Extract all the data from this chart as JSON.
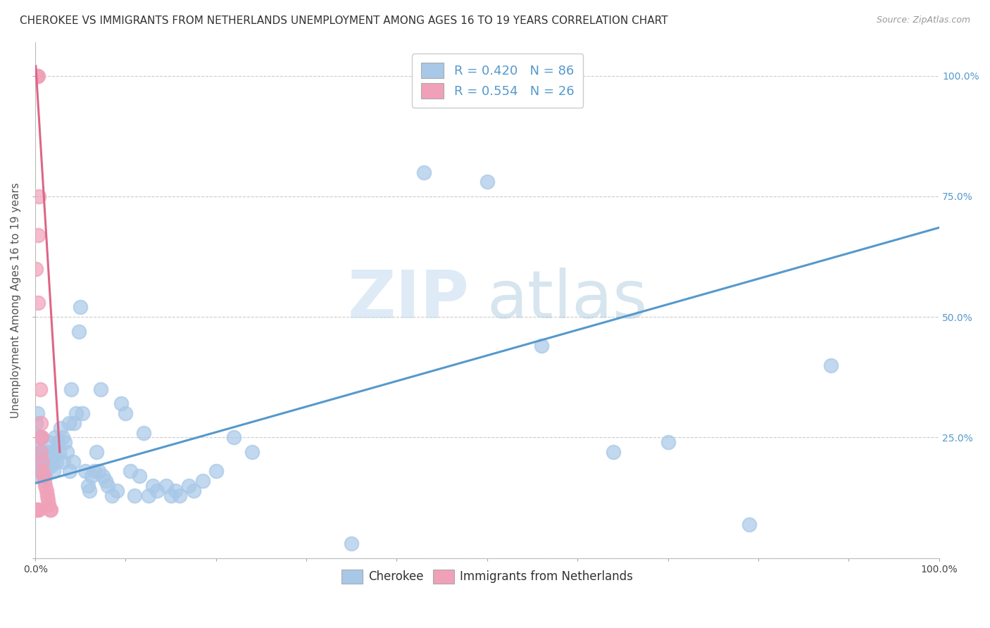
{
  "title": "CHEROKEE VS IMMIGRANTS FROM NETHERLANDS UNEMPLOYMENT AMONG AGES 16 TO 19 YEARS CORRELATION CHART",
  "source": "Source: ZipAtlas.com",
  "ylabel": "Unemployment Among Ages 16 to 19 years",
  "legend_bottom": [
    "Cherokee",
    "Immigrants from Netherlands"
  ],
  "R_blue": 0.42,
  "N_blue": 86,
  "R_pink": 0.554,
  "N_pink": 26,
  "blue_color": "#a8c8e8",
  "pink_color": "#f0a0b8",
  "blue_line_color": "#5599cc",
  "pink_line_color": "#dd6688",
  "watermark_zip": "ZIP",
  "watermark_atlas": "atlas",
  "background_color": "#ffffff",
  "blue_scatter": [
    [
      0.001,
      0.28
    ],
    [
      0.002,
      0.3
    ],
    [
      0.002,
      0.22
    ],
    [
      0.003,
      0.25
    ],
    [
      0.003,
      0.2
    ],
    [
      0.003,
      0.18
    ],
    [
      0.004,
      0.22
    ],
    [
      0.004,
      0.19
    ],
    [
      0.005,
      0.2
    ],
    [
      0.005,
      0.17
    ],
    [
      0.006,
      0.18
    ],
    [
      0.006,
      0.21
    ],
    [
      0.007,
      0.25
    ],
    [
      0.007,
      0.18
    ],
    [
      0.008,
      0.22
    ],
    [
      0.008,
      0.19
    ],
    [
      0.009,
      0.2
    ],
    [
      0.01,
      0.22
    ],
    [
      0.01,
      0.18
    ],
    [
      0.011,
      0.17
    ],
    [
      0.012,
      0.2
    ],
    [
      0.013,
      0.22
    ],
    [
      0.014,
      0.19
    ],
    [
      0.015,
      0.24
    ],
    [
      0.016,
      0.21
    ],
    [
      0.017,
      0.19
    ],
    [
      0.018,
      0.22
    ],
    [
      0.019,
      0.2
    ],
    [
      0.02,
      0.18
    ],
    [
      0.021,
      0.22
    ],
    [
      0.022,
      0.25
    ],
    [
      0.023,
      0.2
    ],
    [
      0.025,
      0.24
    ],
    [
      0.026,
      0.22
    ],
    [
      0.028,
      0.27
    ],
    [
      0.03,
      0.25
    ],
    [
      0.031,
      0.2
    ],
    [
      0.033,
      0.24
    ],
    [
      0.035,
      0.22
    ],
    [
      0.037,
      0.28
    ],
    [
      0.038,
      0.18
    ],
    [
      0.04,
      0.35
    ],
    [
      0.042,
      0.2
    ],
    [
      0.043,
      0.28
    ],
    [
      0.045,
      0.3
    ],
    [
      0.048,
      0.47
    ],
    [
      0.05,
      0.52
    ],
    [
      0.052,
      0.3
    ],
    [
      0.055,
      0.18
    ],
    [
      0.058,
      0.15
    ],
    [
      0.06,
      0.14
    ],
    [
      0.062,
      0.17
    ],
    [
      0.065,
      0.18
    ],
    [
      0.068,
      0.22
    ],
    [
      0.07,
      0.18
    ],
    [
      0.072,
      0.35
    ],
    [
      0.075,
      0.17
    ],
    [
      0.078,
      0.16
    ],
    [
      0.08,
      0.15
    ],
    [
      0.085,
      0.13
    ],
    [
      0.09,
      0.14
    ],
    [
      0.095,
      0.32
    ],
    [
      0.1,
      0.3
    ],
    [
      0.105,
      0.18
    ],
    [
      0.11,
      0.13
    ],
    [
      0.115,
      0.17
    ],
    [
      0.12,
      0.26
    ],
    [
      0.125,
      0.13
    ],
    [
      0.13,
      0.15
    ],
    [
      0.135,
      0.14
    ],
    [
      0.145,
      0.15
    ],
    [
      0.15,
      0.13
    ],
    [
      0.155,
      0.14
    ],
    [
      0.16,
      0.13
    ],
    [
      0.17,
      0.15
    ],
    [
      0.175,
      0.14
    ],
    [
      0.185,
      0.16
    ],
    [
      0.2,
      0.18
    ],
    [
      0.22,
      0.25
    ],
    [
      0.24,
      0.22
    ],
    [
      0.35,
      0.03
    ],
    [
      0.43,
      0.8
    ],
    [
      0.5,
      0.78
    ],
    [
      0.56,
      0.44
    ],
    [
      0.64,
      0.22
    ],
    [
      0.7,
      0.24
    ],
    [
      0.79,
      0.07
    ],
    [
      0.88,
      0.4
    ]
  ],
  "pink_scatter": [
    [
      0.001,
      1.0
    ],
    [
      0.002,
      1.0
    ],
    [
      0.003,
      1.0
    ],
    [
      0.003,
      0.67
    ],
    [
      0.004,
      0.75
    ],
    [
      0.005,
      0.35
    ],
    [
      0.005,
      0.25
    ],
    [
      0.006,
      0.28
    ],
    [
      0.006,
      0.22
    ],
    [
      0.007,
      0.25
    ],
    [
      0.008,
      0.2
    ],
    [
      0.008,
      0.18
    ],
    [
      0.009,
      0.17
    ],
    [
      0.01,
      0.16
    ],
    [
      0.011,
      0.15
    ],
    [
      0.012,
      0.14
    ],
    [
      0.013,
      0.13
    ],
    [
      0.014,
      0.12
    ],
    [
      0.015,
      0.11
    ],
    [
      0.016,
      0.1
    ],
    [
      0.017,
      0.1
    ],
    [
      0.003,
      0.53
    ],
    [
      0.001,
      0.6
    ],
    [
      0.002,
      0.1
    ],
    [
      0.004,
      0.1
    ],
    [
      0.001,
      0.1
    ]
  ],
  "blue_line_x": [
    0.0,
    1.0
  ],
  "blue_line_y": [
    0.155,
    0.685
  ],
  "pink_line_x": [
    0.0005,
    0.027
  ],
  "pink_line_y": [
    1.02,
    0.22
  ],
  "xlim": [
    0.0,
    1.0
  ],
  "ylim": [
    0.0,
    1.07
  ],
  "yticks": [
    0.0,
    0.25,
    0.5,
    0.75,
    1.0
  ],
  "ytick_labels": [
    "",
    "25.0%",
    "50.0%",
    "75.0%",
    "100.0%"
  ],
  "xtick_positions": [
    0.0,
    0.1,
    0.2,
    0.3,
    0.4,
    0.5,
    0.6,
    0.7,
    0.8,
    0.9,
    1.0
  ],
  "title_fontsize": 11,
  "source_fontsize": 9,
  "axis_tick_fontsize": 10,
  "ylabel_fontsize": 11
}
